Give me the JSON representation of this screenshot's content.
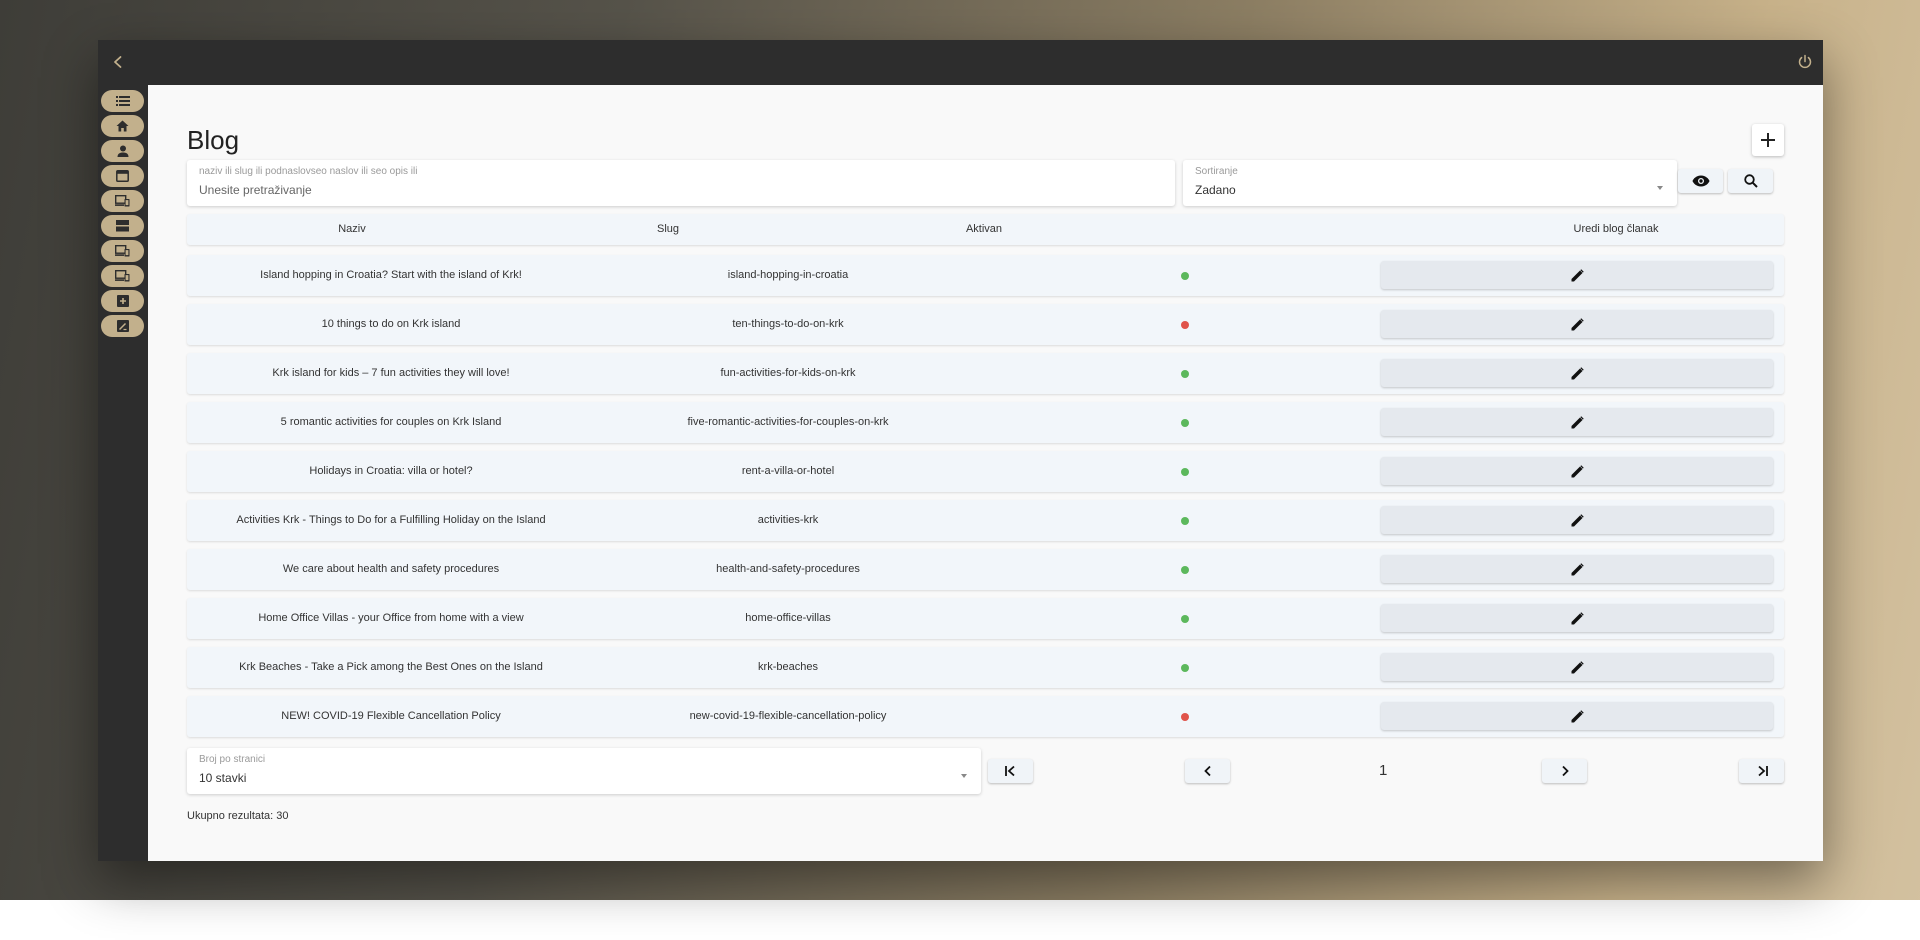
{
  "page": {
    "title": "Blog",
    "add_button_icon": "plus-icon"
  },
  "search": {
    "label": "naziv ili slug ili podnaslovseo naslov ili seo opis ili",
    "placeholder": "Unesite pretraživanje"
  },
  "sort": {
    "label": "Sortiranje",
    "value": "Zadano"
  },
  "table": {
    "headers": {
      "name": "Naziv",
      "slug": "Slug",
      "active": "Aktivan",
      "edit": "Uredi blog članak"
    },
    "rows": [
      {
        "name": "Island hopping in Croatia? Start with the island of Krk!",
        "slug": "island-hopping-in-croatia",
        "active": true
      },
      {
        "name": "10 things to do on Krk island",
        "slug": "ten-things-to-do-on-krk",
        "active": false
      },
      {
        "name": "Krk island for kids – 7 fun activities they will love!",
        "slug": "fun-activities-for-kids-on-krk",
        "active": true
      },
      {
        "name": "5 romantic activities for couples on Krk Island",
        "slug": "five-romantic-activities-for-couples-on-krk",
        "active": true
      },
      {
        "name": "Holidays in Croatia: villa or hotel?",
        "slug": "rent-a-villa-or-hotel",
        "active": true
      },
      {
        "name": "Activities Krk - Things to Do for a Fulfilling Holiday on the Island",
        "slug": "activities-krk",
        "active": true
      },
      {
        "name": "We care about health and safety procedures",
        "slug": "health-and-safety-procedures",
        "active": true
      },
      {
        "name": "Home Office Villas - your Office from home with a view",
        "slug": "home-office-villas",
        "active": true
      },
      {
        "name": "Krk Beaches - Take a Pick among the Best Ones on the Island",
        "slug": "krk-beaches",
        "active": true
      },
      {
        "name": "NEW! COVID-19 Flexible Cancellation Policy",
        "slug": "new-covid-19-flexible-cancellation-policy",
        "active": false
      }
    ]
  },
  "pagination": {
    "per_page_label": "Broj po stranici",
    "per_page_value": "10 stavki",
    "current_page": "1",
    "total_text": "Ukupno rezultata: 30"
  },
  "colors": {
    "active": "#5cb85c",
    "inactive": "#e0534a",
    "sidebar_button": "#c2b08c",
    "accent_icon": "#c2b08c"
  },
  "sidebar": {
    "items": [
      {
        "icon": "list-icon"
      },
      {
        "icon": "home-icon"
      },
      {
        "icon": "person-icon"
      },
      {
        "icon": "calendar-icon"
      },
      {
        "icon": "devices-icon"
      },
      {
        "icon": "storage-icon"
      },
      {
        "icon": "devices-icon"
      },
      {
        "icon": "devices-icon"
      },
      {
        "icon": "add-box-icon"
      },
      {
        "icon": "edit-note-icon"
      }
    ]
  }
}
